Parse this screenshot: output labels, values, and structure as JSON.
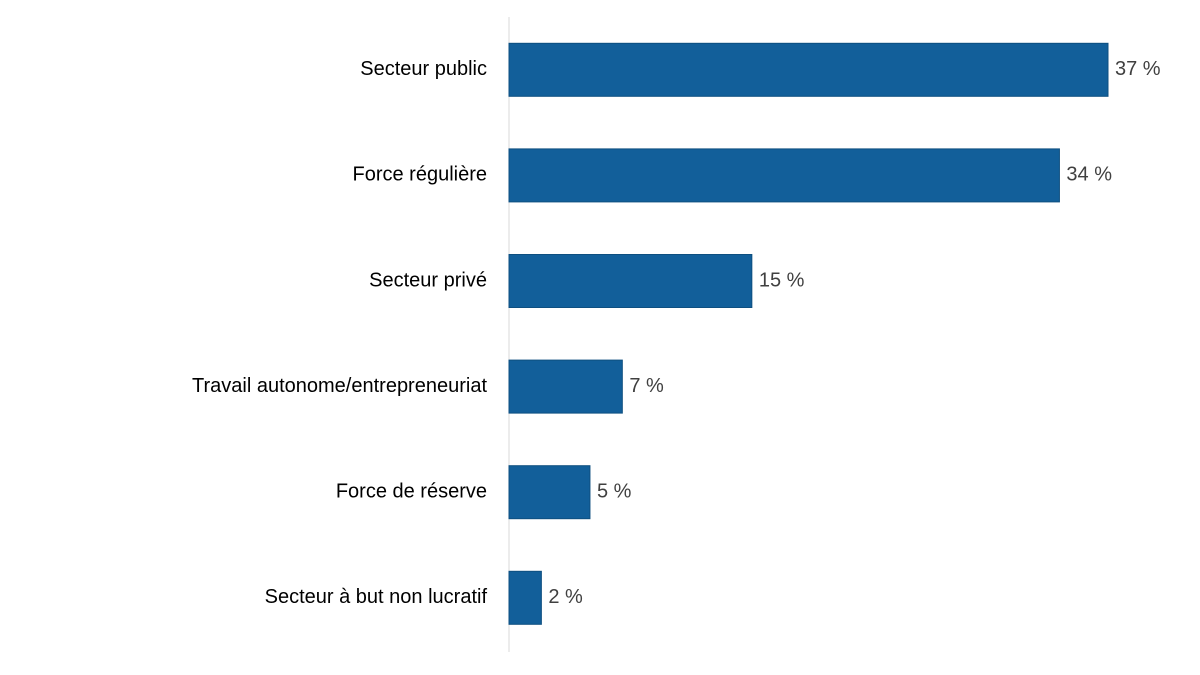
{
  "chart_data": {
    "type": "hbar",
    "categories": [
      "Secteur public",
      "Force régulière",
      "Secteur privé",
      "Travail autonome/entrepreneuriat",
      "Force de réserve",
      "Secteur à but non lucratif"
    ],
    "values": [
      37,
      34,
      15,
      7,
      5,
      2
    ],
    "value_labels": [
      "37 %",
      "34 %",
      "15 %",
      "7 %",
      "5 %",
      "2 %"
    ],
    "color": "#125f9a"
  }
}
